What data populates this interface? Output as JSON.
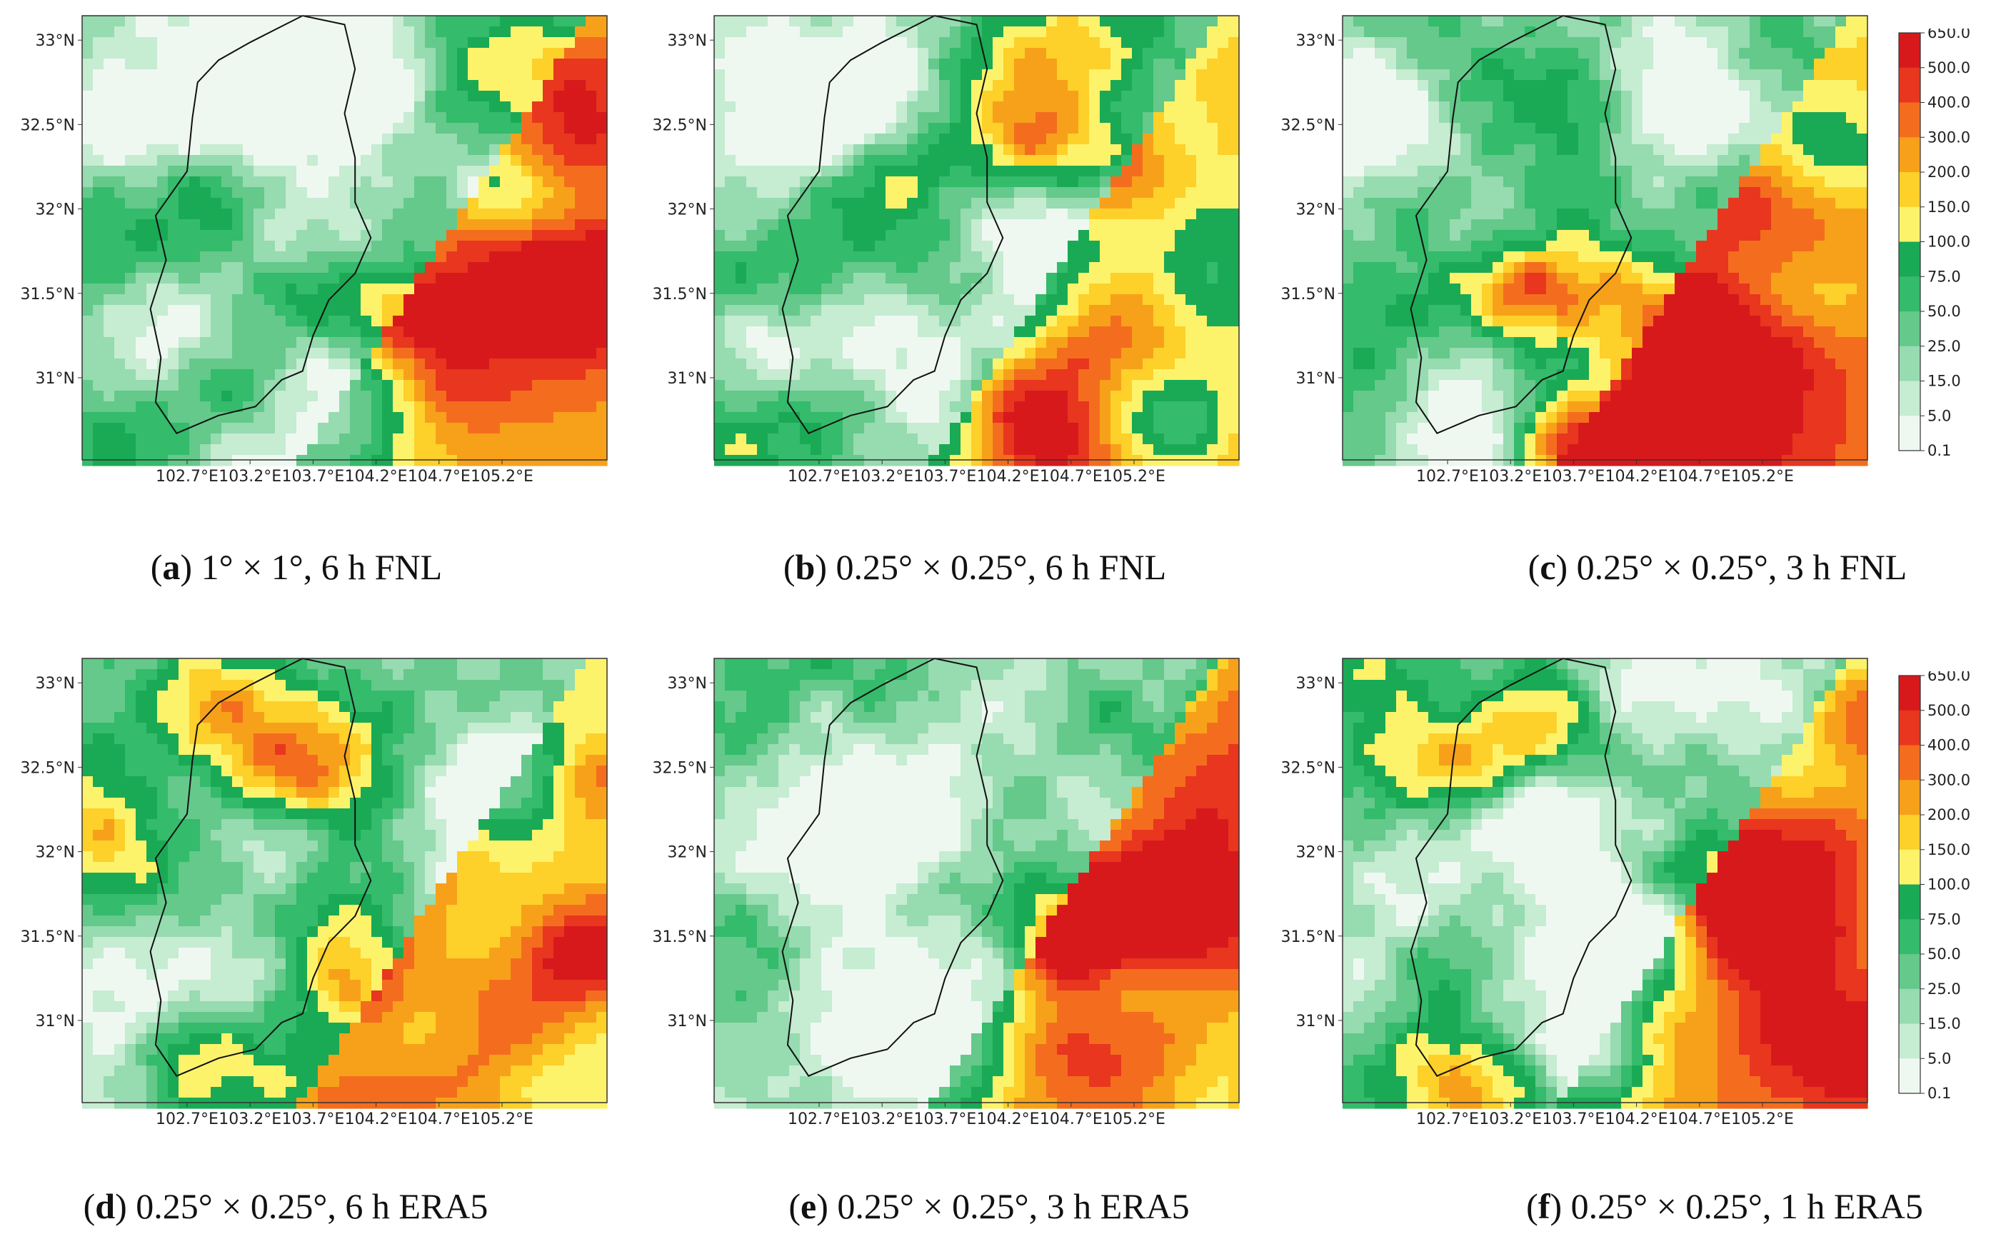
{
  "figure": {
    "lat_ticks": [
      "33°N",
      "32.5°N",
      "32°N",
      "31.5°N",
      "31°N"
    ],
    "lon_ticks": [
      "102.7°E",
      "103.2°E",
      "103.7°E",
      "104.2°E",
      "104.7°E",
      "105.2°E"
    ],
    "colorbar": {
      "levels": [
        "650.0",
        "500.0",
        "400.0",
        "300.0",
        "200.0",
        "150.0",
        "100.0",
        "75.0",
        "50.0",
        "25.0",
        "15.0",
        "5.0",
        "0.1"
      ],
      "colors_high_to_low": [
        "#d7191c",
        "#e8361f",
        "#f46d1e",
        "#f7a11a",
        "#fdd02a",
        "#fdf36b",
        "#1aaa55",
        "#34bb6b",
        "#64c98b",
        "#97dbb0",
        "#c6ecd2",
        "#eef8f1"
      ]
    },
    "panels": [
      {
        "id": "a",
        "letter": "a",
        "caption_rest": ") 1° × 1°, 6 h FNL",
        "intensity": 0.55,
        "seed": 11
      },
      {
        "id": "b",
        "letter": "b",
        "caption_rest": ") 0.25° × 0.25°, 6 h FNL",
        "intensity": 0.6,
        "seed": 23
      },
      {
        "id": "c",
        "letter": "c",
        "caption_rest": ") 0.25° × 0.25°, 3 h FNL",
        "intensity": 0.75,
        "seed": 37
      },
      {
        "id": "d",
        "letter": "d",
        "caption_rest": ") 0.25° × 0.25°, 6 h ERA5",
        "intensity": 0.9,
        "seed": 41
      },
      {
        "id": "e",
        "letter": "e",
        "caption_rest": ") 0.25° × 0.25°, 3 h ERA5",
        "intensity": 0.95,
        "seed": 53
      },
      {
        "id": "f",
        "letter": "f",
        "caption_rest": ") 0.25° × 0.25°, 1 h ERA5",
        "intensity": 0.9,
        "seed": 67
      }
    ]
  }
}
